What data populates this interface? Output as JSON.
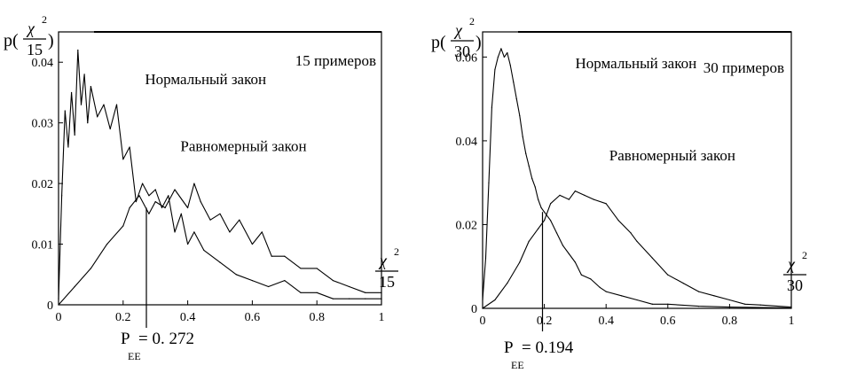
{
  "chart_data": [
    {
      "type": "line",
      "title": "15 примеров",
      "ylabel": {
        "prefix": "p(",
        "numerator": "χ",
        "exponent": "2",
        "denominator": "15",
        "suffix": ")"
      },
      "xlabel": {
        "numerator": "χ",
        "exponent": "2",
        "denominator": "15"
      },
      "xlim": [
        0,
        1
      ],
      "ylim": [
        0,
        0.045
      ],
      "xticks": [
        0,
        0.2,
        0.4,
        0.6,
        0.8,
        1
      ],
      "xtick_labels": [
        "0",
        "0.2",
        "0.4",
        "0.6",
        "0.8",
        "1"
      ],
      "yticks": [
        0,
        0.01,
        0.02,
        0.03,
        0.04
      ],
      "ytick_labels": [
        "0",
        "0.01",
        "0.02",
        "0.03",
        "0.04"
      ],
      "series": [
        {
          "name": "Нормальный закон",
          "x": [
            0,
            0.01,
            0.02,
            0.03,
            0.04,
            0.05,
            0.06,
            0.07,
            0.08,
            0.09,
            0.1,
            0.12,
            0.14,
            0.16,
            0.18,
            0.2,
            0.22,
            0.24,
            0.26,
            0.28,
            0.3,
            0.32,
            0.34,
            0.36,
            0.38,
            0.4,
            0.42,
            0.45,
            0.5,
            0.55,
            0.6,
            0.65,
            0.7,
            0.75,
            0.8,
            0.85,
            0.9,
            0.95,
            1
          ],
          "y": [
            0.001,
            0.018,
            0.032,
            0.026,
            0.035,
            0.028,
            0.042,
            0.033,
            0.038,
            0.03,
            0.036,
            0.031,
            0.033,
            0.029,
            0.033,
            0.024,
            0.026,
            0.017,
            0.02,
            0.018,
            0.019,
            0.016,
            0.018,
            0.012,
            0.015,
            0.01,
            0.012,
            0.009,
            0.007,
            0.005,
            0.004,
            0.003,
            0.004,
            0.002,
            0.002,
            0.001,
            0.001,
            0.001,
            0.001
          ]
        },
        {
          "name": "Равномерный закон",
          "x": [
            0,
            0.05,
            0.1,
            0.15,
            0.2,
            0.22,
            0.25,
            0.28,
            0.3,
            0.33,
            0.36,
            0.4,
            0.42,
            0.44,
            0.47,
            0.5,
            0.53,
            0.56,
            0.6,
            0.63,
            0.66,
            0.7,
            0.75,
            0.8,
            0.85,
            0.9,
            0.95,
            1
          ],
          "y": [
            0,
            0.003,
            0.006,
            0.01,
            0.013,
            0.016,
            0.018,
            0.015,
            0.017,
            0.016,
            0.019,
            0.016,
            0.02,
            0.017,
            0.014,
            0.015,
            0.012,
            0.014,
            0.01,
            0.012,
            0.008,
            0.008,
            0.006,
            0.006,
            0.004,
            0.003,
            0.002,
            0.002
          ]
        }
      ],
      "annotations": [
        {
          "text": "Нормальный закон",
          "x": 0.24,
          "y": 0.0355
        },
        {
          "text": "Равномерный закон",
          "x": 0.35,
          "y": 0.0245
        }
      ],
      "marker": {
        "label": "P",
        "subscript": "EE",
        "value_text": "= 0. 272",
        "x": 0.272,
        "y": 0.016
      }
    },
    {
      "type": "line",
      "title": "30 примеров",
      "ylabel": {
        "prefix": "p(",
        "numerator": "χ",
        "exponent": "2",
        "denominator": "30",
        "suffix": ")"
      },
      "xlabel": {
        "numerator": "χ",
        "exponent": "2",
        "denominator": "30"
      },
      "xlim": [
        0,
        1
      ],
      "ylim": [
        0,
        0.066
      ],
      "xticks": [
        0,
        0.2,
        0.4,
        0.6,
        0.8,
        1
      ],
      "xtick_labels": [
        "0",
        "0.2",
        "0.4",
        "0.6",
        "0.8",
        "1"
      ],
      "yticks": [
        0,
        0.02,
        0.04,
        0.06
      ],
      "ytick_labels": [
        "0",
        "0.02",
        "0.04",
        "0.06"
      ],
      "series": [
        {
          "name": "Нормальный закон",
          "x": [
            0,
            0.01,
            0.02,
            0.03,
            0.04,
            0.05,
            0.06,
            0.07,
            0.08,
            0.09,
            0.1,
            0.11,
            0.12,
            0.13,
            0.14,
            0.15,
            0.16,
            0.17,
            0.18,
            0.19,
            0.2,
            0.22,
            0.24,
            0.26,
            0.28,
            0.3,
            0.32,
            0.35,
            0.38,
            0.4,
            0.45,
            0.5,
            0.55,
            0.6,
            0.7,
            0.8,
            0.9,
            1
          ],
          "y": [
            0.002,
            0.012,
            0.03,
            0.048,
            0.057,
            0.06,
            0.062,
            0.06,
            0.061,
            0.058,
            0.054,
            0.05,
            0.046,
            0.041,
            0.037,
            0.034,
            0.031,
            0.029,
            0.026,
            0.024,
            0.023,
            0.021,
            0.018,
            0.015,
            0.013,
            0.011,
            0.008,
            0.007,
            0.005,
            0.004,
            0.003,
            0.002,
            0.001,
            0.001,
            0.0005,
            0.0003,
            0.0002,
            0.0001
          ]
        },
        {
          "name": "Равномерный закон",
          "x": [
            0,
            0.04,
            0.08,
            0.12,
            0.15,
            0.18,
            0.2,
            0.22,
            0.25,
            0.28,
            0.3,
            0.33,
            0.36,
            0.4,
            0.44,
            0.48,
            0.5,
            0.55,
            0.6,
            0.65,
            0.7,
            0.75,
            0.8,
            0.85,
            0.9,
            1
          ],
          "y": [
            0,
            0.002,
            0.006,
            0.011,
            0.016,
            0.019,
            0.021,
            0.025,
            0.027,
            0.026,
            0.028,
            0.027,
            0.026,
            0.025,
            0.021,
            0.018,
            0.016,
            0.012,
            0.008,
            0.006,
            0.004,
            0.003,
            0.002,
            0.001,
            0.0008,
            0.0003
          ]
        }
      ],
      "annotations": [
        {
          "text": "Нормальный закон",
          "x": 0.26,
          "y": 0.0565
        },
        {
          "text": "Равномерный закон",
          "x": 0.37,
          "y": 0.0345
        }
      ],
      "marker": {
        "label": "P",
        "subscript": "EE",
        "value_text": "= 0.194",
        "x": 0.194,
        "y": 0.023
      }
    }
  ]
}
